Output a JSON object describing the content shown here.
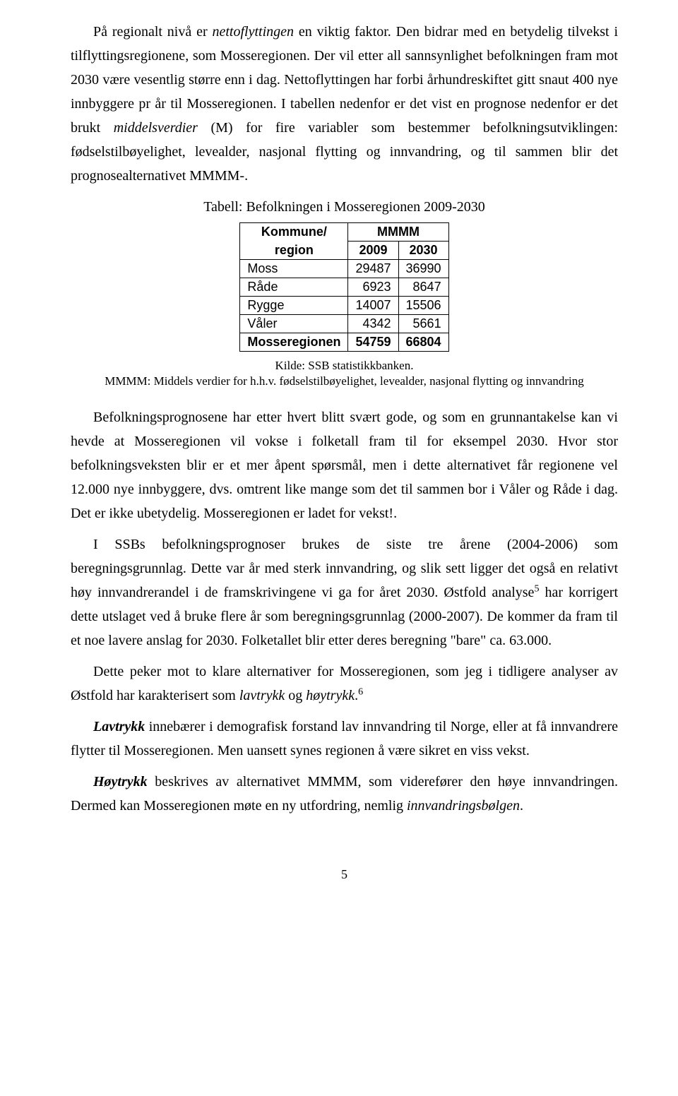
{
  "para1": "På regionalt nivå er <em>nettoflyttingen</em> en viktig faktor. Den bidrar med en betydelig tilvekst i tilflyttingsregionene, som Mosseregionen. Der vil etter all sannsynlighet befolkningen fram mot 2030 være vesentlig større enn i dag. Nettoflyttingen har forbi århundreskiftet gitt snaut 400 nye innbyggere pr år til Mosseregionen. I tabellen nedenfor er det vist en prognose nedenfor er det brukt <em>middelsverdier</em> (M) for fire variabler som bestemmer befolkningsutviklingen: fødselstilbøyelighet, levealder, nasjonal flytting og innvandring, og til sammen blir det prognosealternativet MMMM-.",
  "tableTitle": "Tabell: Befolkningen i Mosseregionen 2009-2030",
  "table": {
    "hdrKommune": "Kommune/",
    "hdrRegion": "region",
    "hdrMMMM": "MMMM",
    "col2009": "2009",
    "col2030": "2030",
    "rows": [
      {
        "label": "Moss",
        "v2009": "29487",
        "v2030": "36990"
      },
      {
        "label": "Råde",
        "v2009": "6923",
        "v2030": "8647"
      },
      {
        "label": "Rygge",
        "v2009": "14007",
        "v2030": "15506"
      },
      {
        "label": "Våler",
        "v2009": "4342",
        "v2030": "5661"
      }
    ],
    "total": {
      "label": "Mosseregionen",
      "v2009": "54759",
      "v2030": "66804"
    }
  },
  "source1": "Kilde: SSB statistikkbanken.",
  "source2": "MMMM: Middels verdier for h.h.v. fødselstilbøyelighet, levealder, nasjonal flytting og innvandring",
  "para2": "Befolkningsprognosene har etter hvert blitt svært gode, og som en grunnantakelse kan vi hevde at Mosseregionen vil vokse i folketall fram til for eksempel 2030. Hvor stor befolkningsveksten blir er et mer åpent spørsmål, men i dette alternativet får regionene vel 12.000 nye innbyggere, dvs. omtrent like mange som det til sammen bor i Våler og Råde i dag. Det er ikke ubetydelig. Mosseregionen er ladet for vekst!.",
  "para3": "I SSBs befolkningsprognoser brukes de siste tre årene (2004-2006) som beregningsgrunnlag. Dette var år med sterk innvandring, og slik sett ligger det også en relativt høy innvandrerandel i de framskrivingene vi ga for året 2030. Østfold analyse<sup>5</sup> har korrigert dette utslaget ved å bruke flere år som beregningsgrunnlag (2000-2007). De kommer da fram til et noe lavere anslag for 2030. Folketallet blir etter deres beregning \"bare\" ca. 63.000.",
  "para4": "Dette peker mot to klare alternativer for Mosseregionen, som jeg i tidligere analyser av Østfold har karakterisert som <em>lavtrykk</em> og <em>høytrykk</em>.<sup>6</sup>",
  "para5": "<span class=\"bold-italic\">Lavtrykk</span> innebærer i demografisk forstand lav innvandring til Norge, eller at få innvandrere flytter til Mosseregionen. Men uansett synes regionen å være sikret en viss vekst.",
  "para6": "<span class=\"bold-italic\">Høytrykk</span> beskrives av alternativet MMMM, som viderefører den høye innvandringen. Dermed kan Mosseregionen møte en ny utfordring, nemlig <em>innvandringsbølgen</em>.",
  "pageNum": "5"
}
